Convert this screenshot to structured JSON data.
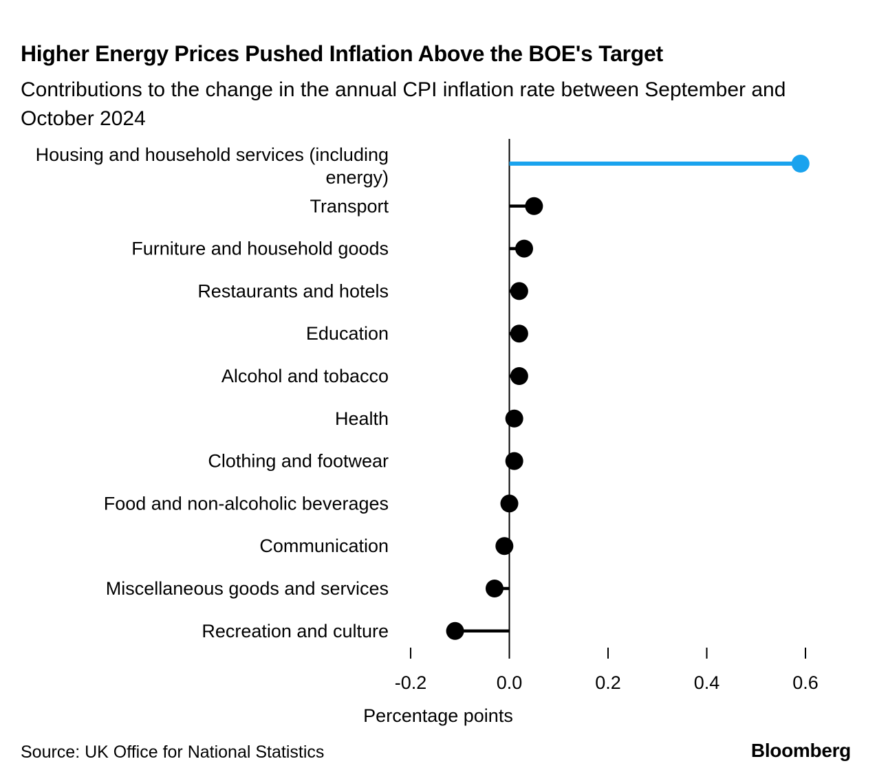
{
  "footer": {
    "source": "Source: UK Office for National Statistics",
    "brand": "Bloomberg"
  },
  "chart_data": {
    "type": "bar",
    "variant": "horizontal-lollipop",
    "title": "Higher Energy Prices Pushed Inflation Above the BOE's Target",
    "subtitle": "Contributions to the change in the annual CPI inflation rate between September and October 2024",
    "xlabel": "Percentage points",
    "ylabel": "",
    "grid": false,
    "legend": false,
    "xlim": [
      -0.235,
      0.745
    ],
    "xticks": [
      -0.2,
      0,
      0.2,
      0.4,
      0.6
    ],
    "xtick_labels": [
      "-0.2",
      "0.0",
      "0.2",
      "0.4",
      "0.6"
    ],
    "categories": [
      "Housing and household services (including energy)",
      "Transport",
      "Furniture and household goods",
      "Restaurants and hotels",
      "Education",
      "Alcohol and tobacco",
      "Health",
      "Clothing and footwear",
      "Food and non-alcoholic beverages",
      "Communication",
      "Miscellaneous goods and services",
      "Recreation and culture"
    ],
    "category_label_lines": [
      [
        "Housing and household services (including",
        "energy)"
      ],
      [
        "Transport"
      ],
      [
        "Furniture and household goods"
      ],
      [
        "Restaurants and hotels"
      ],
      [
        "Education"
      ],
      [
        "Alcohol and tobacco"
      ],
      [
        "Health"
      ],
      [
        "Clothing and footwear"
      ],
      [
        "Food and non-alcoholic beverages"
      ],
      [
        "Communication"
      ],
      [
        "Miscellaneous goods and services"
      ],
      [
        "Recreation and culture"
      ]
    ],
    "values": [
      0.59,
      0.05,
      0.03,
      0.02,
      0.02,
      0.02,
      0.01,
      0.01,
      0,
      -0.01,
      -0.03,
      -0.11
    ],
    "highlight": {
      "index": 0,
      "color": "#1AA3EE"
    },
    "dot_color": "#000000",
    "axis_color": "#000000"
  }
}
